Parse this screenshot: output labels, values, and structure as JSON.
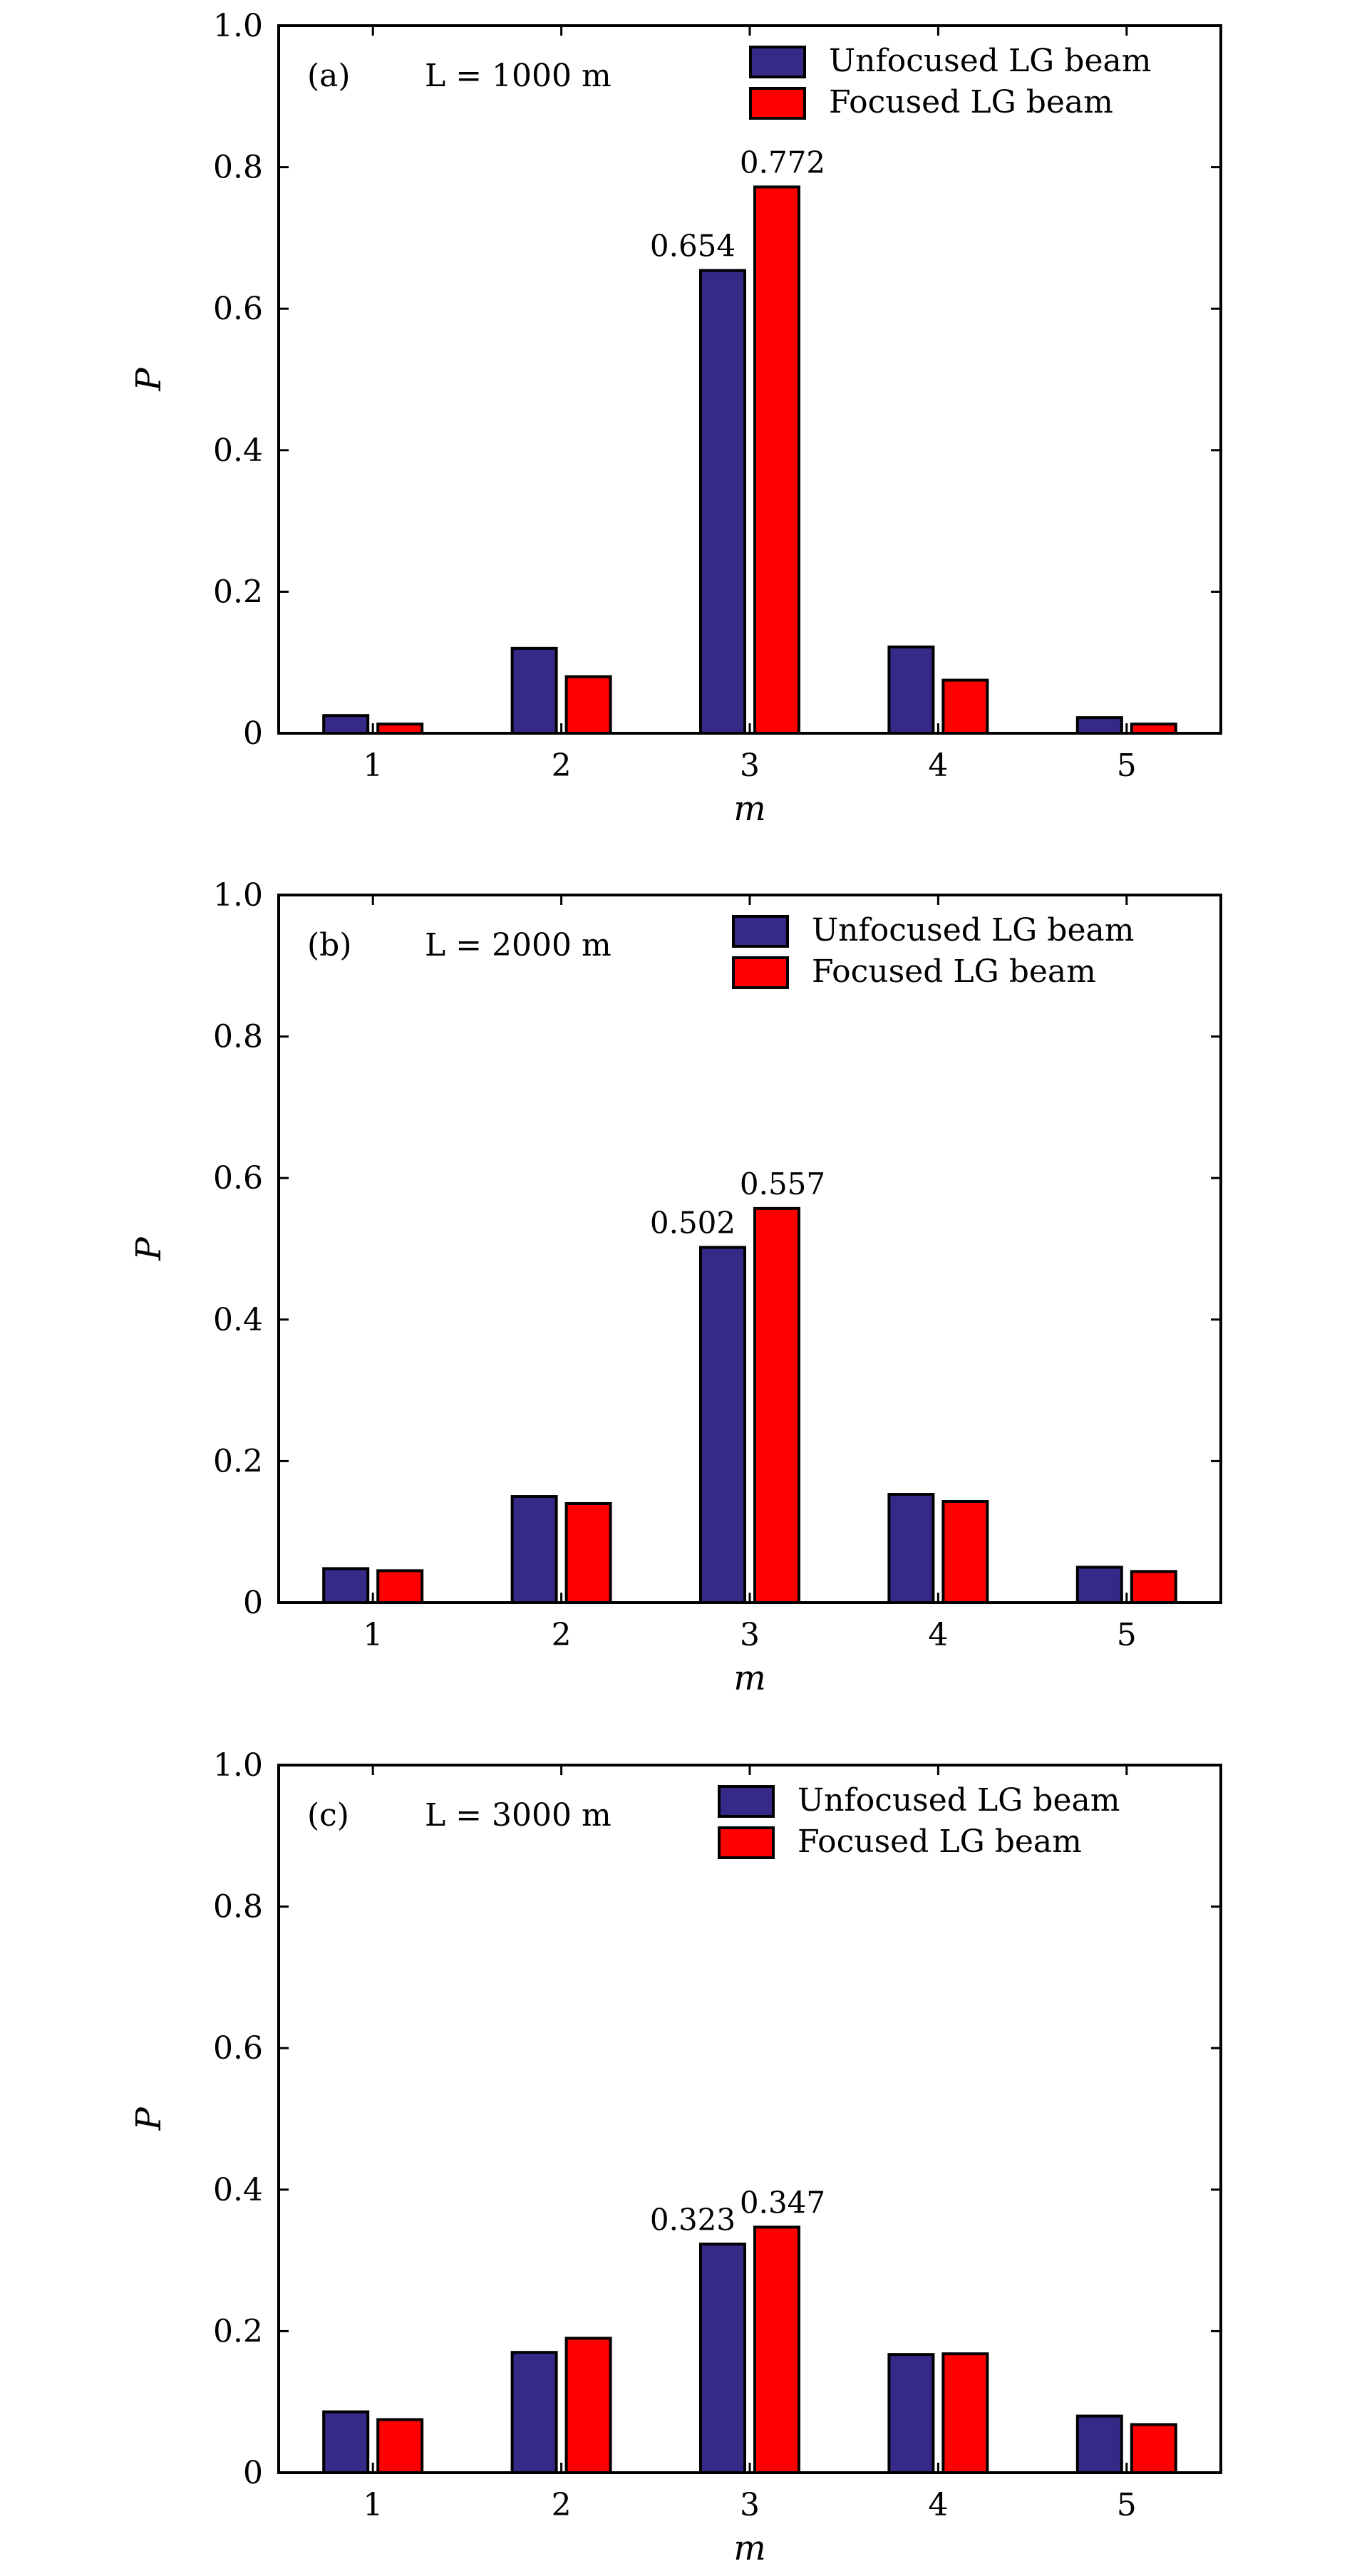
{
  "chart_data": [
    {
      "type": "bar",
      "panel_label": "(a)",
      "annotation": "L = 1000 m",
      "xlabel": "m",
      "ylabel": "P",
      "ylim": [
        0,
        1.0
      ],
      "yticks": [
        "0",
        "0.2",
        "0.4",
        "0.6",
        "0.8",
        "1.0"
      ],
      "yticks_values": [
        0,
        0.2,
        0.4,
        0.6,
        0.8,
        1.0
      ],
      "categories": [
        "1",
        "2",
        "3",
        "4",
        "5"
      ],
      "legend_position": "top-right",
      "series": [
        {
          "name": "Unfocused LG beam",
          "color": "#352a87",
          "values": [
            0.025,
            0.12,
            0.654,
            0.122,
            0.022
          ]
        },
        {
          "name": "Focused LG beam",
          "color": "#ff0000",
          "values": [
            0.013,
            0.08,
            0.772,
            0.075,
            0.013
          ]
        }
      ],
      "data_labels": [
        {
          "series": 0,
          "index": 2,
          "text": "0.654"
        },
        {
          "series": 1,
          "index": 2,
          "text": "0.772"
        }
      ]
    },
    {
      "type": "bar",
      "panel_label": "(b)",
      "annotation": "L = 2000 m",
      "xlabel": "m",
      "ylabel": "P",
      "ylim": [
        0,
        1.0
      ],
      "yticks": [
        "0",
        "0.2",
        "0.4",
        "0.6",
        "0.8",
        "1.0"
      ],
      "yticks_values": [
        0,
        0.2,
        0.4,
        0.6,
        0.8,
        1.0
      ],
      "categories": [
        "1",
        "2",
        "3",
        "4",
        "5"
      ],
      "legend_position": "top-right",
      "series": [
        {
          "name": "Unfocused LG beam",
          "color": "#352a87",
          "values": [
            0.048,
            0.15,
            0.502,
            0.153,
            0.05
          ]
        },
        {
          "name": "Focused LG beam",
          "color": "#ff0000",
          "values": [
            0.045,
            0.14,
            0.557,
            0.143,
            0.044
          ]
        }
      ],
      "data_labels": [
        {
          "series": 0,
          "index": 2,
          "text": "0.502"
        },
        {
          "series": 1,
          "index": 2,
          "text": "0.557"
        }
      ]
    },
    {
      "type": "bar",
      "panel_label": "(c)",
      "annotation": "L = 3000 m",
      "xlabel": "m",
      "ylabel": "P",
      "ylim": [
        0,
        1.0
      ],
      "yticks": [
        "0",
        "0.2",
        "0.4",
        "0.6",
        "0.8",
        "1.0"
      ],
      "yticks_values": [
        0,
        0.2,
        0.4,
        0.6,
        0.8,
        1.0
      ],
      "categories": [
        "1",
        "2",
        "3",
        "4",
        "5"
      ],
      "legend_position": "top-right",
      "series": [
        {
          "name": "Unfocused LG beam",
          "color": "#352a87",
          "values": [
            0.086,
            0.17,
            0.323,
            0.167,
            0.08
          ]
        },
        {
          "name": "Focused LG beam",
          "color": "#ff0000",
          "values": [
            0.075,
            0.19,
            0.347,
            0.168,
            0.068
          ]
        }
      ],
      "data_labels": [
        {
          "series": 0,
          "index": 2,
          "text": "0.323"
        },
        {
          "series": 1,
          "index": 2,
          "text": "0.347"
        }
      ]
    }
  ]
}
